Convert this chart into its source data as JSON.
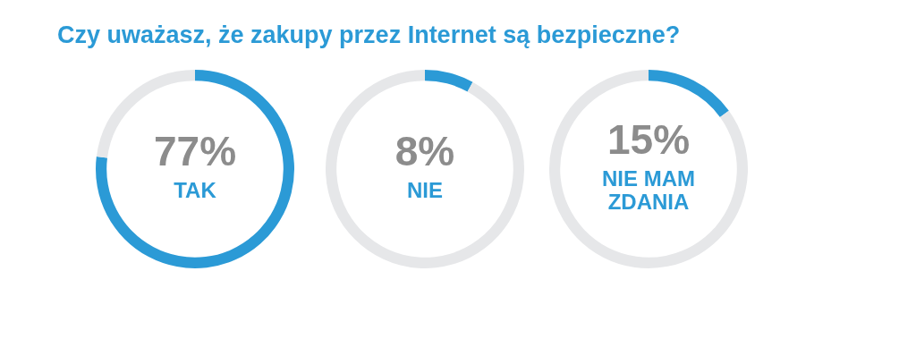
{
  "chart_data": [
    {
      "type": "donut",
      "title": "Czy uważasz, że zakupy przez Internet są bezpieczne?",
      "categories": [
        "TAK",
        null
      ],
      "values": [
        77,
        23
      ],
      "value_labels": [
        "77%",
        null
      ],
      "colors": [
        "#2b9ad6",
        "#e6e7e9"
      ],
      "legend": false
    },
    {
      "type": "donut",
      "categories": [
        "NIE",
        null
      ],
      "values": [
        8,
        92
      ],
      "value_labels": [
        "8%",
        null
      ],
      "colors": [
        "#2b9ad6",
        "#e6e7e9"
      ],
      "legend": false
    },
    {
      "type": "donut",
      "categories": [
        "NIE MAM ZDANIA",
        null
      ],
      "values": [
        15,
        85
      ],
      "value_labels": [
        "15%",
        null
      ],
      "colors": [
        "#2b9ad6",
        "#e6e7e9"
      ],
      "legend": false
    }
  ]
}
